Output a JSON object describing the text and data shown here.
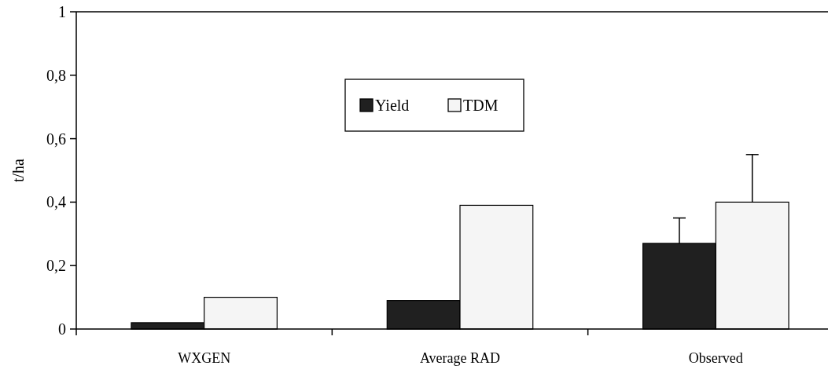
{
  "chart_data": {
    "type": "bar",
    "ylabel": "t/ha",
    "categories": [
      "WXGEN",
      "Average RAD",
      "Observed"
    ],
    "series": [
      {
        "name": "Yield",
        "color": "#202020",
        "values": [
          0.02,
          0.09,
          0.27
        ],
        "errors": [
          null,
          null,
          0.08
        ]
      },
      {
        "name": "TDM",
        "color": "#f5f5f5",
        "values": [
          0.1,
          0.39,
          0.4
        ],
        "errors": [
          null,
          null,
          0.15
        ]
      }
    ],
    "ylim": [
      0,
      1
    ],
    "yticks": [
      0,
      {
        "value": 0.2,
        "label": "0,2"
      },
      {
        "value": 0.4,
        "label": "0,4"
      },
      {
        "value": 0.6,
        "label": "0,6"
      },
      {
        "value": 0.8,
        "label": "0,8"
      },
      1
    ],
    "grid": false,
    "legend": "top"
  }
}
